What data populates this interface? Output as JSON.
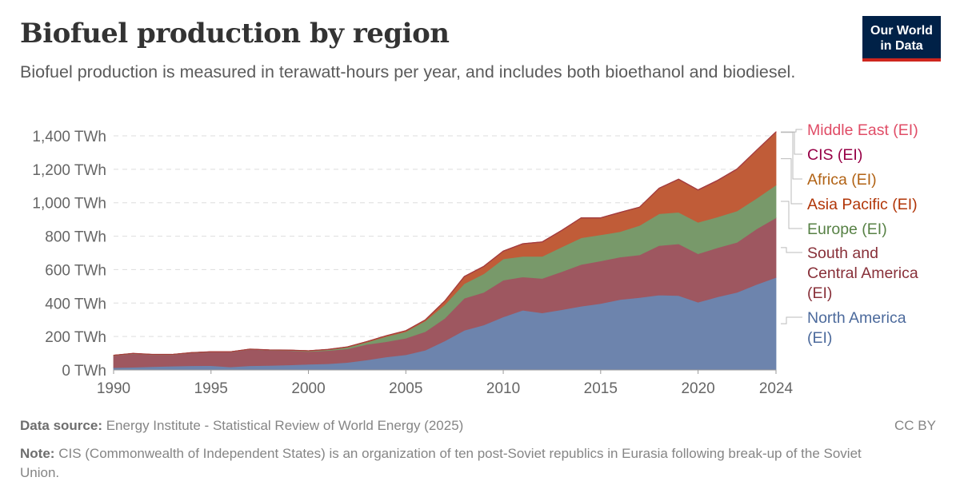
{
  "header": {
    "title": "Biofuel production by region",
    "subtitle": "Biofuel production is measured in terawatt-hours per year, and includes both bioethanol and biodiesel.",
    "logo_line1": "Our World",
    "logo_line2": "in Data"
  },
  "footer": {
    "source_label": "Data source:",
    "source_text": "Energy Institute - Statistical Review of World Energy (2025)",
    "note_label": "Note:",
    "note_text": "CIS (Commonwealth of Independent States) is an organization of ten post-Soviet republics in Eurasia following break-up of the Soviet Union.",
    "license": "CC BY"
  },
  "chart_data": {
    "type": "area",
    "stacked": true,
    "title": "Biofuel production by region",
    "ylabel": "TWh",
    "ylim": [
      0,
      1400
    ],
    "yticks": [
      0,
      200,
      400,
      600,
      800,
      1000,
      1200,
      1400
    ],
    "ytick_labels": [
      "0 TWh",
      "200 TWh",
      "400 TWh",
      "600 TWh",
      "800 TWh",
      "1,000 TWh",
      "1,200 TWh",
      "1,400 TWh"
    ],
    "xticks": [
      1990,
      1995,
      2000,
      2005,
      2010,
      2015,
      2020,
      2024
    ],
    "xtick_labels": [
      "1990",
      "1995",
      "2000",
      "2005",
      "2010",
      "2015",
      "2020",
      "2024"
    ],
    "grid": "horizontal-dashed",
    "legend_placement": "right",
    "x": [
      1990,
      1991,
      1992,
      1993,
      1994,
      1995,
      1996,
      1997,
      1998,
      1999,
      2000,
      2001,
      2002,
      2003,
      2004,
      2005,
      2006,
      2007,
      2008,
      2009,
      2010,
      2011,
      2012,
      2013,
      2014,
      2015,
      2016,
      2017,
      2018,
      2019,
      2020,
      2021,
      2022,
      2023,
      2024
    ],
    "series": [
      {
        "name": "North America (EI)",
        "fill": "#6d84ad",
        "label_color": "#4c6a9c",
        "values": [
          14,
          16,
          20,
          23,
          25,
          26,
          18,
          25,
          27,
          30,
          34,
          37,
          45,
          60,
          78,
          91,
          118,
          174,
          237,
          269,
          317,
          357,
          341,
          360,
          381,
          397,
          421,
          433,
          448,
          445,
          405,
          437,
          464,
          511,
          553
        ]
      },
      {
        "name": "South and Central America (EI)",
        "fill": "#9e5760",
        "label_color": "#883039",
        "values": [
          72,
          81,
          71,
          68,
          77,
          81,
          89,
          98,
          91,
          86,
          76,
          79,
          81,
          93,
          91,
          99,
          111,
          135,
          192,
          195,
          220,
          199,
          206,
          228,
          250,
          255,
          254,
          255,
          296,
          309,
          290,
          294,
          299,
          332,
          357
        ]
      },
      {
        "name": "Europe (EI)",
        "fill": "#78996a",
        "label_color": "#578145",
        "values": [
          1,
          1,
          1,
          1,
          1,
          1,
          1,
          1,
          1,
          2,
          3,
          5,
          9,
          13,
          31,
          39,
          64,
          81,
          87,
          111,
          127,
          123,
          132,
          147,
          159,
          156,
          152,
          176,
          190,
          189,
          188,
          184,
          188,
          183,
          196
        ]
      },
      {
        "name": "Asia Pacific (EI)",
        "fill": "#c05c38",
        "label_color": "#b13507",
        "values": [
          1,
          1,
          1,
          1,
          1,
          1,
          1,
          1,
          1,
          1,
          2,
          2,
          3,
          4,
          5,
          5,
          6,
          21,
          41,
          43,
          45,
          74,
          85,
          98,
          117,
          99,
          113,
          107,
          150,
          195,
          191,
          215,
          247,
          284,
          314
        ]
      },
      {
        "name": "Africa (EI)",
        "fill": "#b8732e",
        "label_color": "#b16214",
        "values": [
          0,
          0,
          0,
          0,
          0,
          0,
          0,
          0,
          0,
          0,
          0,
          0,
          0,
          0,
          0,
          0,
          0,
          0,
          0,
          0,
          0,
          0,
          0,
          0,
          1,
          1,
          1,
          1,
          1,
          1,
          1,
          1,
          1,
          1,
          1
        ]
      },
      {
        "name": "CIS (EI)",
        "fill": "#a3345f",
        "label_color": "#970046",
        "values": [
          0,
          0,
          0,
          0,
          0,
          0,
          0,
          0,
          0,
          0,
          0,
          0,
          0,
          0,
          0,
          1,
          1,
          2,
          2,
          2,
          2,
          2,
          2,
          2,
          2,
          2,
          2,
          2,
          2,
          2,
          2,
          2,
          2,
          2,
          2
        ]
      },
      {
        "name": "Middle East (EI)",
        "fill": "#e0605f",
        "label_color": "#e04c66",
        "values": [
          0,
          0,
          0,
          0,
          0,
          0,
          0,
          0,
          0,
          0,
          0,
          0,
          0,
          0,
          0,
          0,
          0,
          0,
          0,
          0,
          0,
          0,
          0,
          0,
          0,
          0,
          0,
          0,
          0,
          0,
          0,
          1,
          1,
          1,
          1
        ]
      }
    ]
  }
}
